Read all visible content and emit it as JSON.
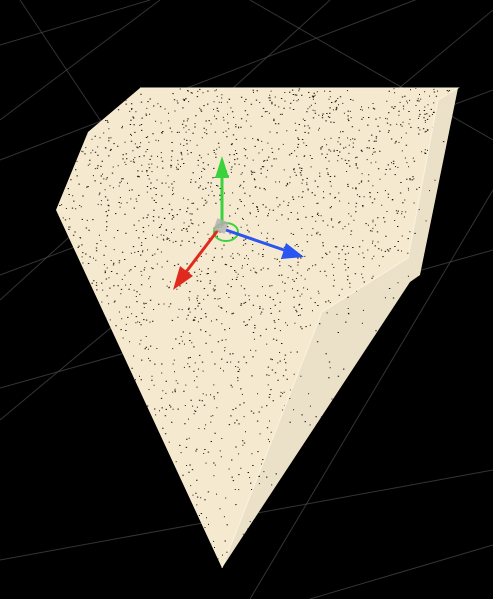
{
  "scene": {
    "background_color": "#000000",
    "grid_color": "#4a4a4a",
    "mesh_color": "#f5ead0",
    "mesh_edge_color": "#fbf3df",
    "speckle_color": "#1a140c",
    "speckle_density": "high"
  },
  "gizmo": {
    "type": "translate",
    "x_axis_color": "#e02a1e",
    "y_axis_color": "#3cd23c",
    "z_axis_color": "#2a55f0",
    "rotation_ring_color": "#3cd23c",
    "center_cube_color": "#b0b0b0",
    "icon_names": [
      "x-axis-arrow-icon",
      "y-axis-arrow-icon",
      "z-axis-arrow-icon",
      "pivot-icon"
    ]
  }
}
